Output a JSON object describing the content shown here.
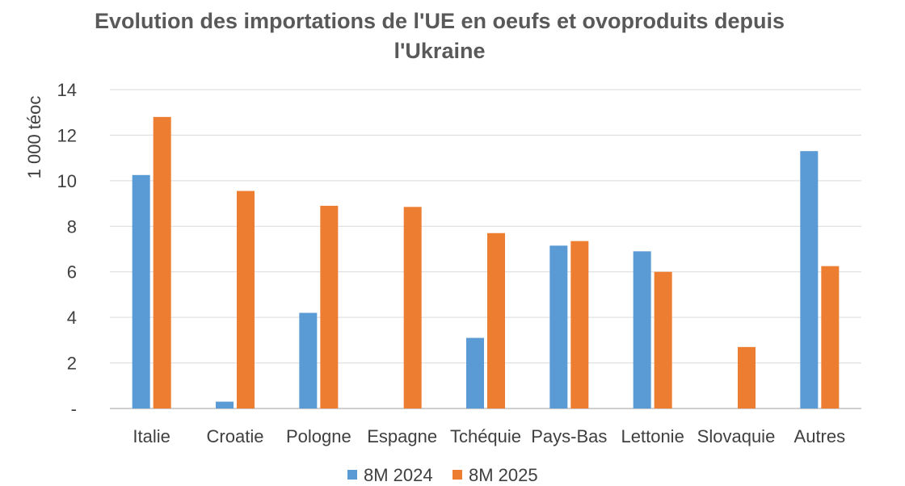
{
  "chart_data": {
    "type": "bar",
    "title_lines": [
      "Evolution des importations de l'UE en oeufs et ovoproduits depuis",
      "l'Ukraine"
    ],
    "ylabel": "1 000 téoc",
    "xlabel": "",
    "ylim": [
      0,
      14
    ],
    "yticks": [
      0,
      2,
      4,
      6,
      8,
      10,
      12,
      14
    ],
    "ytick_labels": [
      "-",
      "2",
      "4",
      "6",
      "8",
      "10",
      "12",
      "14"
    ],
    "grid": "horizontal",
    "legend_position": "bottom",
    "categories": [
      "Italie",
      "Croatie",
      "Pologne",
      "Espagne",
      "Tchéquie",
      "Pays-Bas",
      "Lettonie",
      "Slovaquie",
      "Autres"
    ],
    "series": [
      {
        "name": "8M 2024",
        "color": "#5b9bd5",
        "values": [
          10.25,
          0.3,
          4.2,
          0,
          3.1,
          7.15,
          6.9,
          0,
          11.3
        ]
      },
      {
        "name": "8M 2025",
        "color": "#ed7d31",
        "values": [
          12.8,
          9.55,
          8.9,
          8.85,
          7.7,
          7.35,
          6.0,
          2.7,
          6.25
        ]
      }
    ]
  }
}
